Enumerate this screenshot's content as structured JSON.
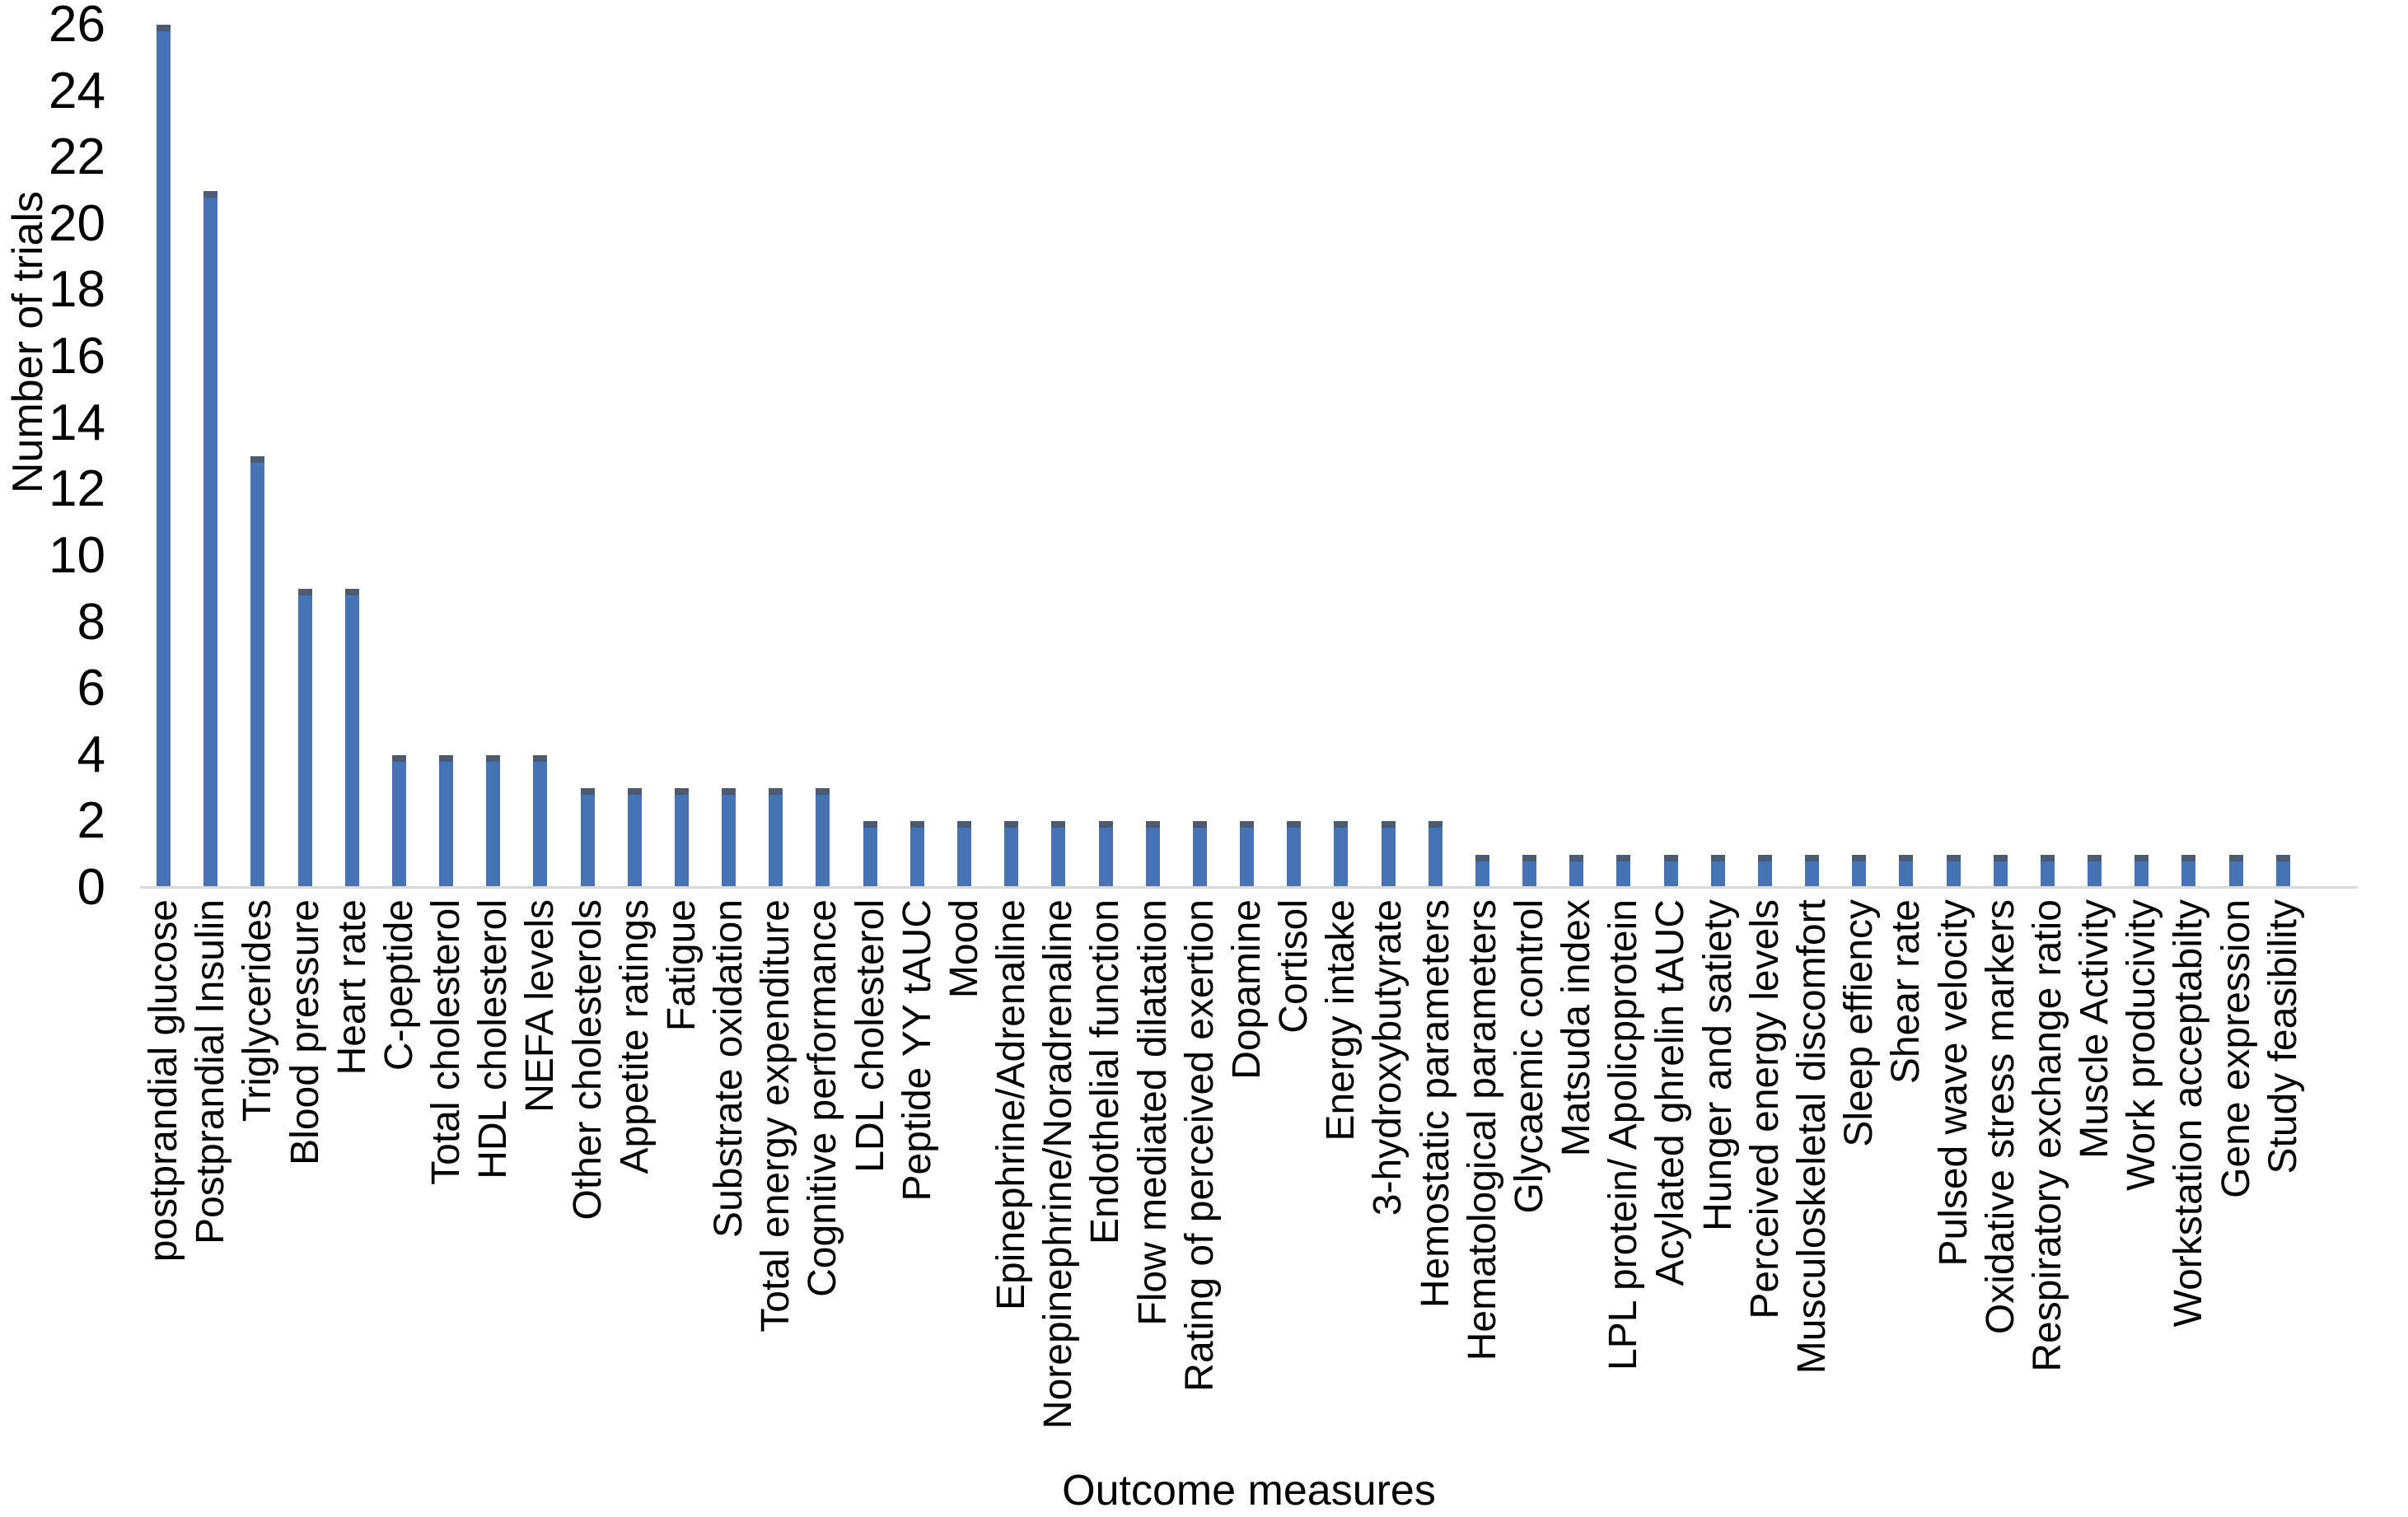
{
  "chart_data": {
    "type": "bar",
    "title": "",
    "xlabel": "Outcome measures",
    "ylabel": "Number of trials",
    "categories": [
      "postprandial glucose",
      "Postprandial Insulin",
      "Triglycerides",
      "Blood pressure",
      "Heart rate",
      "C-peptide",
      "Total cholesterol",
      "HDL cholesterol",
      "NEFA levels",
      "Other cholesterols",
      "Appetite ratings",
      "Fatigue",
      "Substrate oxidation",
      "Total energy expenditure",
      "Cognitive performance",
      "LDL cholesterol",
      "Peptide YY tAUC",
      "Mood",
      "Epinephrine/Adrenaline",
      "Norepinephrine/Noradrenaline",
      "Endothelial function",
      "Flow mediated dilatation",
      "Rating of perceived exertion",
      "Dopamine",
      "Cortisol",
      "Energy intake",
      "3-hydroxybutyrate",
      "Hemostatic parameters",
      "Hematological parameters",
      "Glycaemic control",
      "Matsuda index",
      "LPL protein/ Apolicpprotein",
      "Acylated ghrelin tAUC",
      "Hunger and satiety",
      "Perceived energy levels",
      "Musculoskeletal discomfort",
      "Sleep effiency",
      "Shear rate",
      "Pulsed wave velocity",
      "Oxidative stress markers",
      "Respiratory exchange ratio",
      "Muscle Activity",
      "Work producivity",
      "Workstation acceptabilty",
      "Gene expression",
      "Study feasibility"
    ],
    "values": [
      26,
      21,
      13,
      9,
      9,
      4,
      4,
      4,
      4,
      3,
      3,
      3,
      3,
      3,
      3,
      2,
      2,
      2,
      2,
      2,
      2,
      2,
      2,
      2,
      2,
      2,
      2,
      2,
      1,
      1,
      1,
      1,
      1,
      1,
      1,
      1,
      1,
      1,
      1,
      1,
      1,
      1,
      1,
      1,
      1,
      1
    ],
    "ylim": [
      0,
      26
    ],
    "yticks": [
      0,
      2,
      4,
      6,
      8,
      10,
      12,
      14,
      16,
      18,
      20,
      22,
      24,
      26
    ],
    "grid": "off",
    "legend": "none",
    "bar_color": "#4573b4",
    "bar_cap_color": "#4e5a70",
    "axis_line_color": "#d9d9d9",
    "text_color": "#000000",
    "background_color": "#ffffff"
  }
}
